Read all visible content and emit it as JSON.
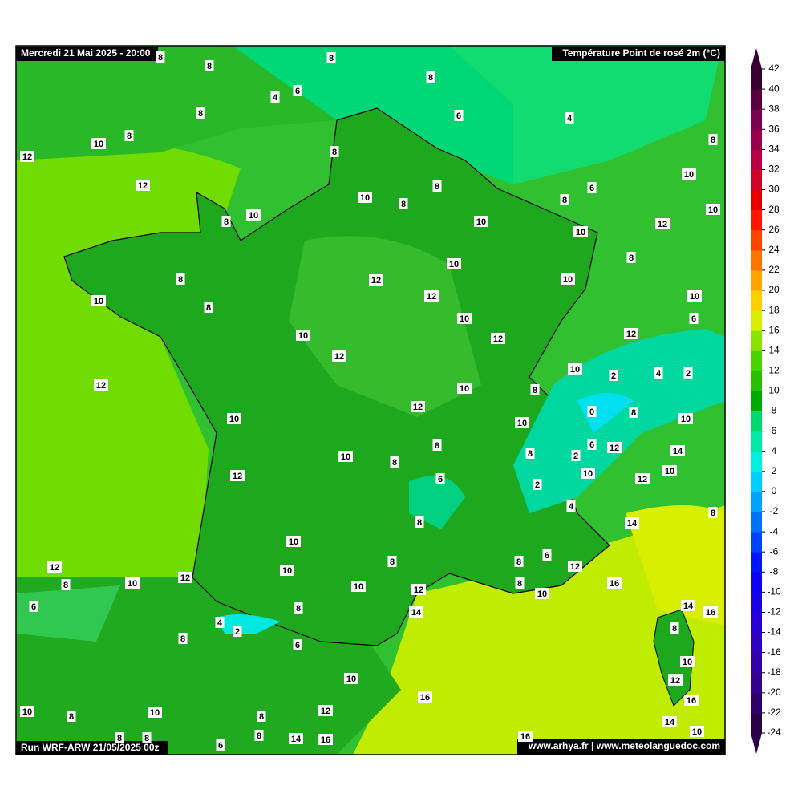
{
  "header": {
    "date": "Mercredi 21 Mai 2025 - 20:00",
    "title": "Température Point de rosé 2m (°C)",
    "run": "Run WRF-ARW 21/05/2025 00z",
    "credit": "www.arhya.fr | www.meteolanguedoc.com"
  },
  "colorbar": {
    "ticks": [
      -24,
      -22,
      -20,
      -18,
      -16,
      -14,
      -12,
      -10,
      -8,
      -6,
      -4,
      -2,
      0,
      2,
      4,
      6,
      8,
      10,
      12,
      14,
      16,
      18,
      20,
      22,
      24,
      26,
      28,
      30,
      32,
      34,
      36,
      38,
      40,
      42
    ],
    "colors": [
      "#2a0048",
      "#30006a",
      "#34008c",
      "#3400a8",
      "#2e00c0",
      "#2400d4",
      "#1800e4",
      "#0c00f2",
      "#0014ff",
      "#0040ff",
      "#0070ff",
      "#00a0ff",
      "#00d0ff",
      "#00f0e0",
      "#00e8a8",
      "#00d870",
      "#00a800",
      "#28c000",
      "#48d400",
      "#88e400",
      "#d8f000",
      "#ffd000",
      "#ffa400",
      "#ff7400",
      "#ff4400",
      "#ff1800",
      "#e80000",
      "#d00028",
      "#b80040",
      "#98004c",
      "#78004c",
      "#560040",
      "#380030"
    ]
  },
  "labels": [
    8,
    8,
    8,
    4,
    6,
    8,
    6,
    4,
    8,
    10,
    8,
    12,
    8,
    12,
    10,
    6,
    8,
    8,
    10,
    8,
    8,
    10,
    8,
    10,
    12,
    10,
    10,
    8,
    8,
    10,
    10,
    12,
    10,
    8,
    12,
    10,
    10,
    6,
    10,
    12,
    12,
    12,
    10,
    2,
    4,
    2,
    12,
    10,
    8,
    12,
    0,
    8,
    10,
    10,
    10,
    8,
    6,
    12,
    8,
    14,
    2,
    10,
    8,
    12,
    6,
    10,
    10,
    12,
    2,
    4,
    8,
    8,
    14,
    10,
    6,
    8,
    8,
    10,
    12,
    12,
    8,
    10,
    12,
    8,
    16,
    10,
    12,
    10,
    14,
    16,
    6,
    14,
    8,
    4,
    2,
    8,
    8,
    6,
    10,
    10,
    12,
    16,
    16,
    10,
    8,
    10,
    12,
    8,
    14,
    10,
    8,
    8,
    8,
    14,
    16,
    16,
    6
  ]
}
